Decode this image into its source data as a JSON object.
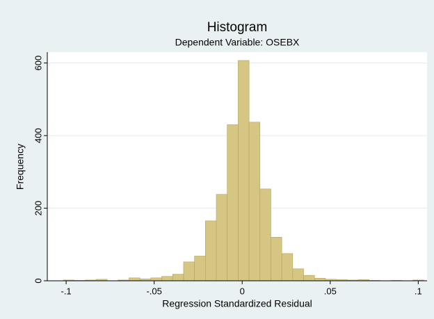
{
  "chart_data": {
    "type": "histogram",
    "title": "Histogram",
    "subtitle": "Dependent Variable: OSEBX",
    "x_label": "Regression Standardized Residual",
    "y_label": "Frequency",
    "bins": [
      -0.1015,
      -0.0953,
      -0.0891,
      -0.0829,
      -0.0767,
      -0.0705,
      -0.0643,
      -0.0581,
      -0.0519,
      -0.0457,
      -0.0395,
      -0.0333,
      -0.0271,
      -0.0209,
      -0.0147,
      -0.0085,
      -0.0023,
      0.0039,
      0.0101,
      0.0163,
      0.0225,
      0.0287,
      0.0349,
      0.0411,
      0.0473,
      0.0535,
      0.0597,
      0.0659,
      0.0721,
      0.0783,
      0.0845,
      0.0907,
      0.0969,
      0.1031
    ],
    "values": [
      2,
      1,
      2,
      4,
      0,
      2,
      8,
      5,
      8,
      12,
      18,
      52,
      68,
      165,
      238,
      430,
      607,
      437,
      253,
      120,
      75,
      33,
      15,
      7,
      4,
      3,
      2,
      3,
      1,
      0,
      1,
      0,
      2
    ],
    "color": "#d5c783",
    "edge_color": "#b3a25a",
    "xlim": [
      -0.1107,
      0.105
    ],
    "ylim": [
      0,
      630
    ],
    "xticks": [
      {
        "value": -0.1,
        "label": "-.1"
      },
      {
        "value": -0.05,
        "label": "-.05"
      },
      0,
      {
        "value": 0.05,
        "label": ".05"
      },
      {
        "value": 0.1,
        "label": ".1"
      }
    ],
    "yticks": [
      0,
      200,
      400,
      600
    ],
    "grid": true
  }
}
